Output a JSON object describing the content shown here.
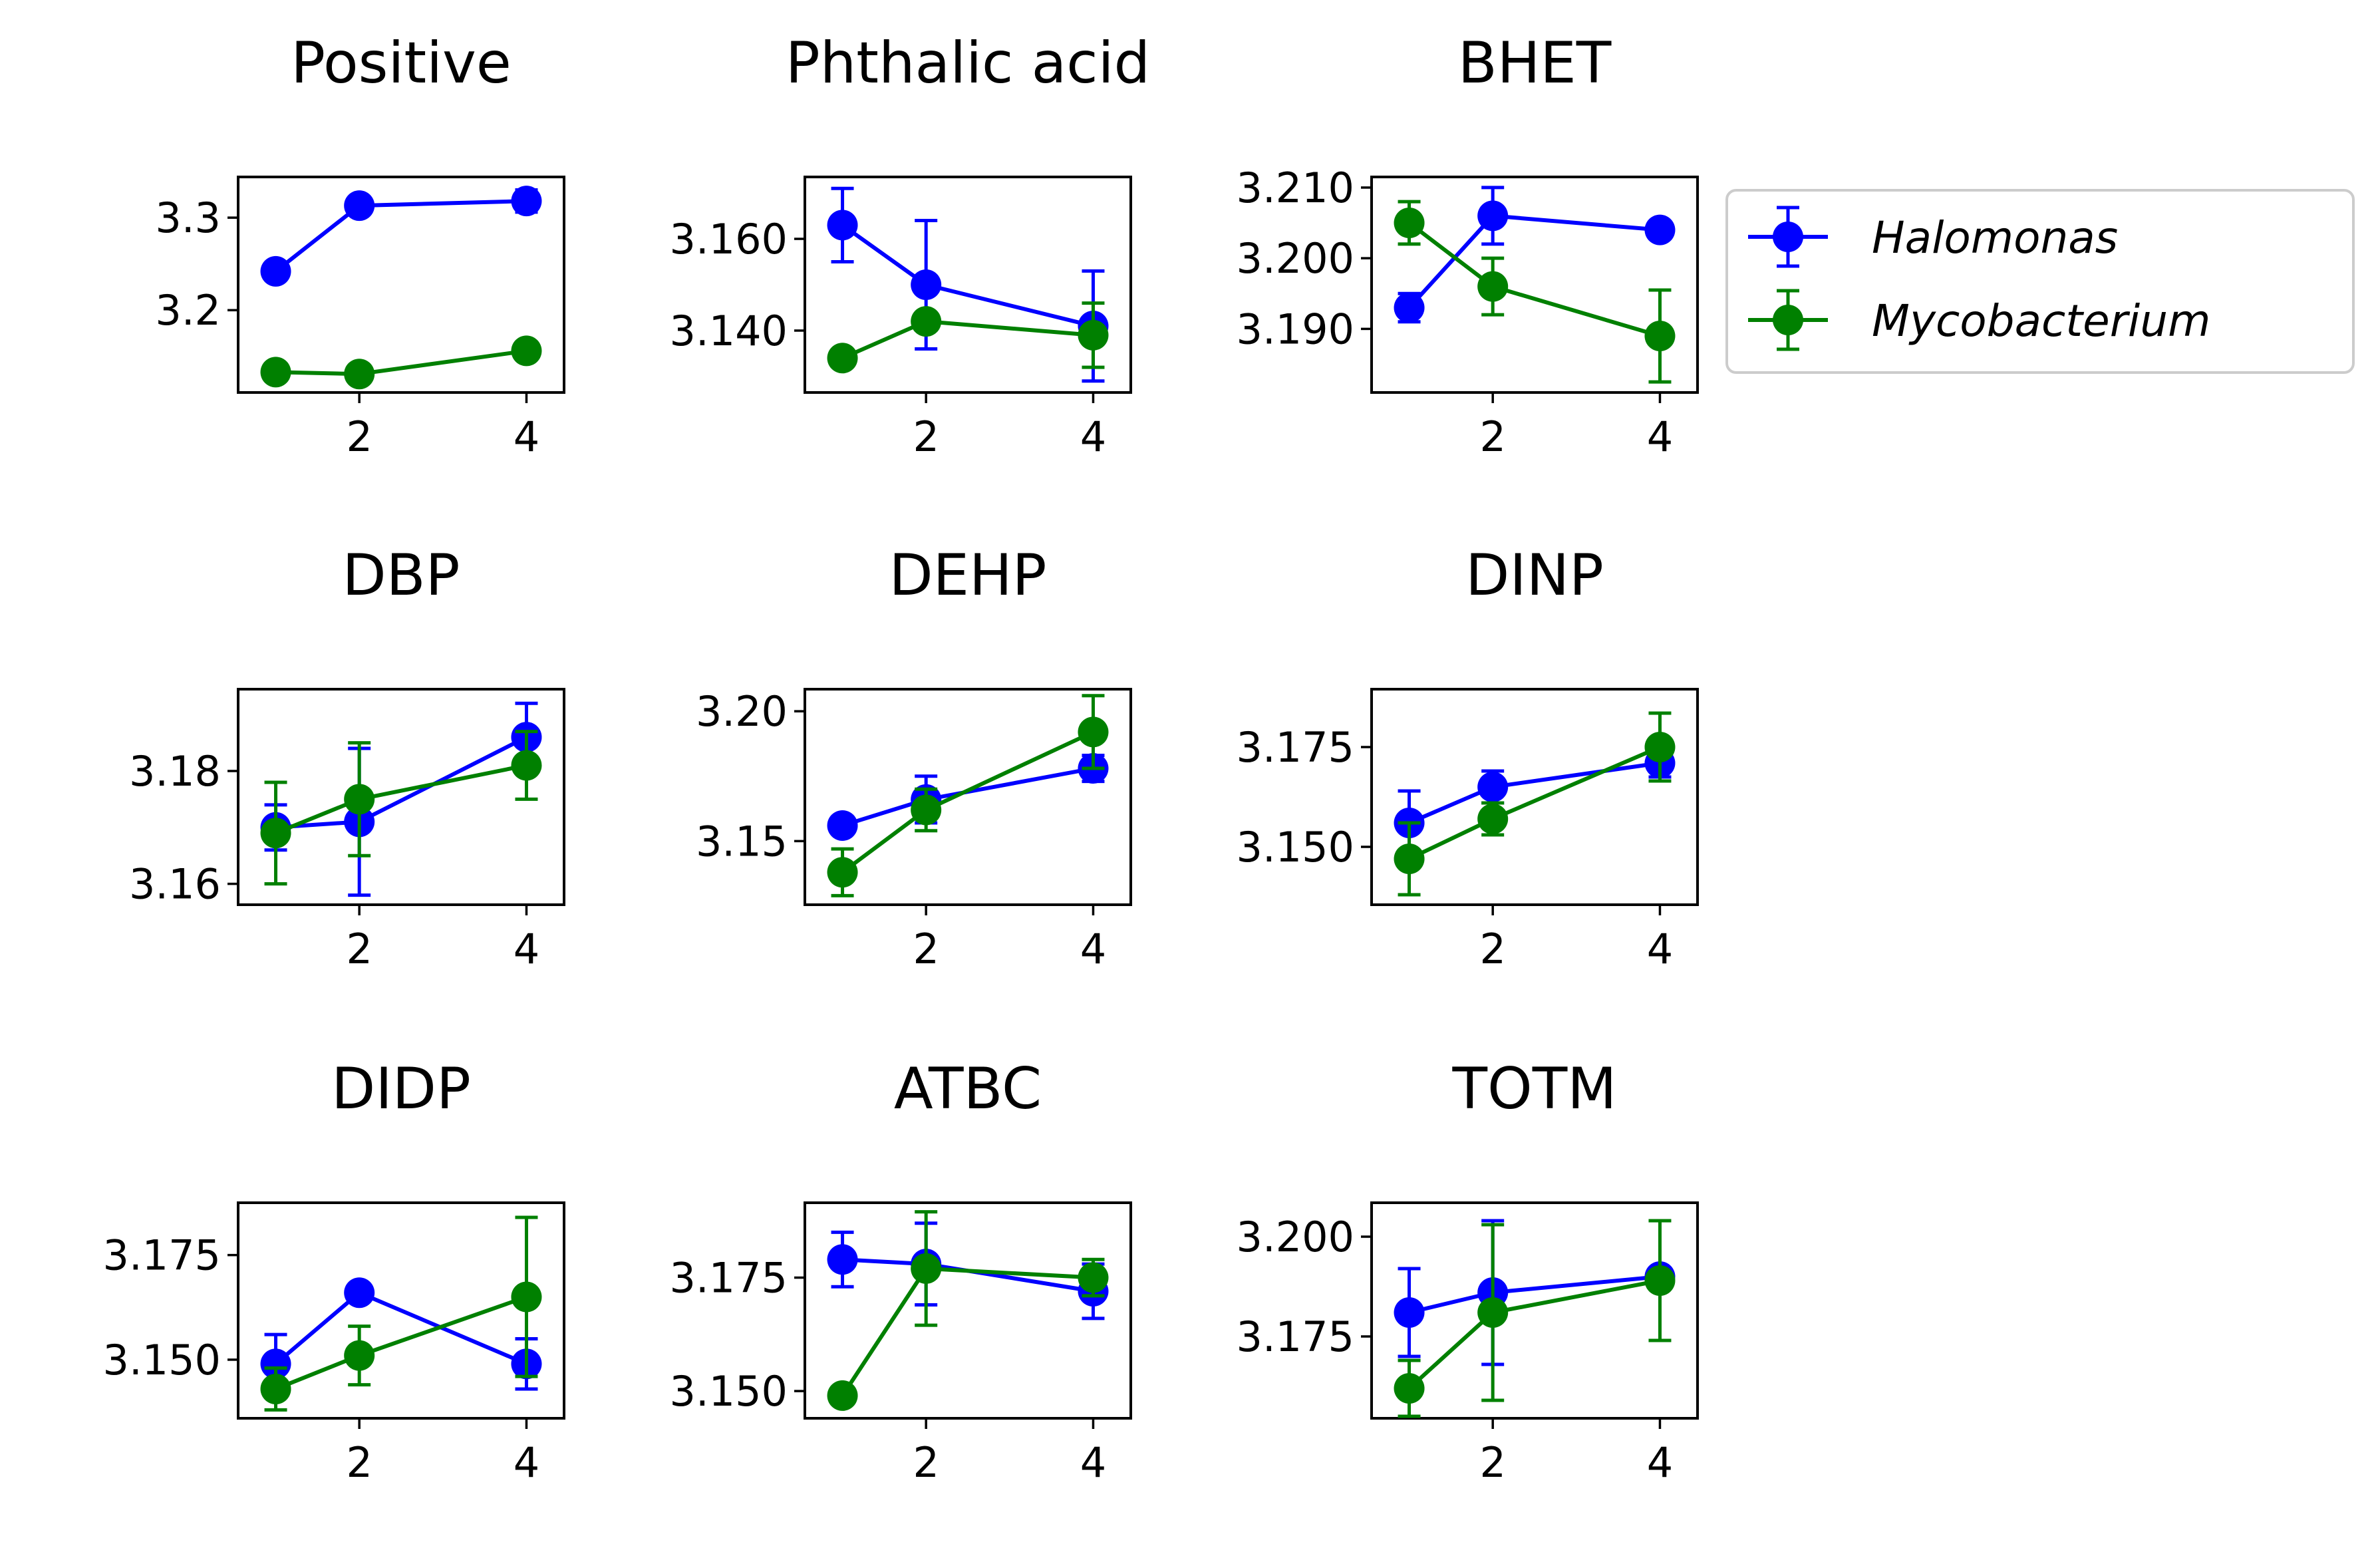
{
  "chart_data": {
    "type": "line",
    "x": [
      1,
      2,
      4
    ],
    "series_names": [
      "Halomonas",
      "Mycobacterium"
    ],
    "series_colors": [
      "#0000ff",
      "#008000"
    ],
    "legend": {
      "position": "right of top row",
      "entries": [
        "Halomonas",
        "Mycobacterium"
      ]
    },
    "xticks": [
      "2",
      "4"
    ],
    "xlim": [
      0.55,
      4.45
    ],
    "panels": [
      {
        "title": "Positive",
        "ylim": [
          3.111,
          3.344
        ],
        "yticks": [
          "3.2",
          "3.3"
        ],
        "series": [
          {
            "name": "Halomonas",
            "values": [
              3.242,
              3.313,
              3.318
            ],
            "errors": [
              0.0,
              0.0,
              0.012
            ]
          },
          {
            "name": "Mycobacterium",
            "values": [
              3.133,
              3.131,
              3.156
            ],
            "errors": [
              0.0,
              0.0,
              0.0
            ]
          }
        ]
      },
      {
        "title": "Phthalic acid",
        "ylim": [
          3.1265,
          3.1735
        ],
        "yticks": [
          "3.140",
          "3.160"
        ],
        "series": [
          {
            "name": "Halomonas",
            "values": [
              3.163,
              3.15,
              3.141
            ],
            "errors": [
              0.008,
              0.014,
              0.012
            ]
          },
          {
            "name": "Mycobacterium",
            "values": [
              3.134,
              3.142,
              3.139
            ],
            "errors": [
              0.0,
              0.0,
              0.007
            ]
          }
        ]
      },
      {
        "title": "BHET",
        "ylim": [
          3.181,
          3.2115
        ],
        "yticks": [
          "3.190",
          "3.200",
          "3.210"
        ],
        "series": [
          {
            "name": "Halomonas",
            "values": [
              3.193,
              3.206,
              3.204
            ],
            "errors": [
              0.002,
              0.004,
              0.0
            ]
          },
          {
            "name": "Mycobacterium",
            "values": [
              3.205,
              3.196,
              3.189
            ],
            "errors": [
              0.003,
              0.004,
              0.0065
            ]
          }
        ]
      },
      {
        "title": "DBP",
        "ylim": [
          3.1563,
          3.1945
        ],
        "yticks": [
          "3.16",
          "3.18"
        ],
        "series": [
          {
            "name": "Halomonas",
            "values": [
              3.17,
              3.171,
              3.186
            ],
            "errors": [
              0.004,
              0.013,
              0.006
            ]
          },
          {
            "name": "Mycobacterium",
            "values": [
              3.169,
              3.175,
              3.181
            ],
            "errors": [
              0.009,
              0.01,
              0.006
            ]
          }
        ]
      },
      {
        "title": "DEHP",
        "ylim": [
          3.1255,
          3.2085
        ],
        "yticks": [
          "3.15",
          "3.20"
        ],
        "series": [
          {
            "name": "Halomonas",
            "values": [
              3.156,
              3.166,
              3.178
            ],
            "errors": [
              0.0,
              0.009,
              0.005
            ]
          },
          {
            "name": "Mycobacterium",
            "values": [
              3.138,
              3.162,
              3.192
            ],
            "errors": [
              0.009,
              0.008,
              0.014
            ]
          }
        ]
      },
      {
        "title": "DINP",
        "ylim": [
          3.1355,
          3.1895
        ],
        "yticks": [
          "3.150",
          "3.175"
        ],
        "series": [
          {
            "name": "Halomonas",
            "values": [
              3.156,
              3.165,
              3.171
            ],
            "errors": [
              0.008,
              0.004,
              0.0035
            ]
          },
          {
            "name": "Mycobacterium",
            "values": [
              3.147,
              3.157,
              3.175
            ],
            "errors": [
              0.009,
              0.004,
              0.0085
            ]
          }
        ]
      },
      {
        "title": "DIDP",
        "ylim": [
          3.136,
          3.1875
        ],
        "yticks": [
          "3.150",
          "3.175"
        ],
        "series": [
          {
            "name": "Halomonas",
            "values": [
              3.149,
              3.166,
              3.149
            ],
            "errors": [
              0.007,
              0.0,
              0.006
            ]
          },
          {
            "name": "Mycobacterium",
            "values": [
              3.143,
              3.151,
              3.165
            ],
            "errors": [
              0.005,
              0.007,
              0.019
            ]
          }
        ]
      },
      {
        "title": "ATBC",
        "ylim": [
          3.144,
          3.1915
        ],
        "yticks": [
          "3.150",
          "3.175"
        ],
        "series": [
          {
            "name": "Halomonas",
            "values": [
              3.179,
              3.178,
              3.172
            ],
            "errors": [
              0.006,
              0.009,
              0.006
            ]
          },
          {
            "name": "Mycobacterium",
            "values": [
              3.149,
              3.177,
              3.175
            ],
            "errors": [
              0.0,
              0.0125,
              0.004
            ]
          }
        ]
      },
      {
        "title": "TOTM",
        "ylim": [
          3.1545,
          3.2085
        ],
        "yticks": [
          "3.175",
          "3.200"
        ],
        "series": [
          {
            "name": "Halomonas",
            "values": [
              3.181,
              3.186,
              3.19
            ],
            "errors": [
              0.011,
              0.018,
              0.0
            ]
          },
          {
            "name": "Mycobacterium",
            "values": [
              3.162,
              3.181,
              3.189
            ],
            "errors": [
              0.007,
              0.022,
              0.015
            ]
          }
        ]
      }
    ]
  }
}
